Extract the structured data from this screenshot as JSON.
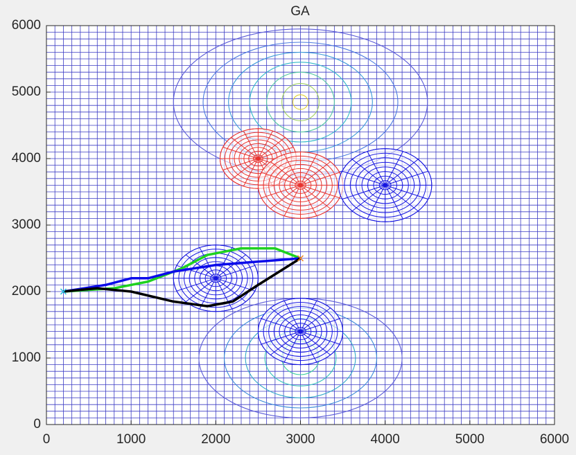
{
  "chart_data": {
    "type": "path-plan",
    "title": "GA",
    "xlim": [
      0,
      6000
    ],
    "ylim": [
      0,
      6000
    ],
    "xticks": [
      0,
      1000,
      2000,
      3000,
      4000,
      5000,
      6000
    ],
    "yticks": [
      0,
      1000,
      2000,
      3000,
      4000,
      5000,
      6000
    ],
    "obstacles": [
      {
        "x": 2500,
        "y": 4000,
        "r": 450,
        "color": "#e8322e"
      },
      {
        "x": 3000,
        "y": 3600,
        "r": 500,
        "color": "#e8322e"
      },
      {
        "x": 4000,
        "y": 3600,
        "r": 550,
        "color": "#1414e0"
      },
      {
        "x": 2000,
        "y": 2200,
        "r": 500,
        "color": "#1414e0"
      },
      {
        "x": 3000,
        "y": 1400,
        "r": 500,
        "color": "#1414e0"
      }
    ],
    "series": [
      {
        "color": "#1fd21f",
        "x": [
          200,
          800,
          1200,
          1600,
          1900,
          2300,
          2700,
          3000
        ],
        "values": [
          2000,
          2050,
          2150,
          2350,
          2550,
          2650,
          2650,
          2500
        ]
      },
      {
        "color": "#0b0bea",
        "x": [
          200,
          700,
          1000,
          1200,
          1500,
          2000,
          2500,
          3000
        ],
        "values": [
          2000,
          2100,
          2200,
          2200,
          2300,
          2400,
          2450,
          2500
        ]
      },
      {
        "color": "#000000",
        "x": [
          200,
          600,
          1000,
          1500,
          1900,
          2200,
          2500,
          3000
        ],
        "values": [
          2000,
          2050,
          2000,
          1850,
          1780,
          1850,
          2100,
          2500
        ]
      }
    ]
  }
}
